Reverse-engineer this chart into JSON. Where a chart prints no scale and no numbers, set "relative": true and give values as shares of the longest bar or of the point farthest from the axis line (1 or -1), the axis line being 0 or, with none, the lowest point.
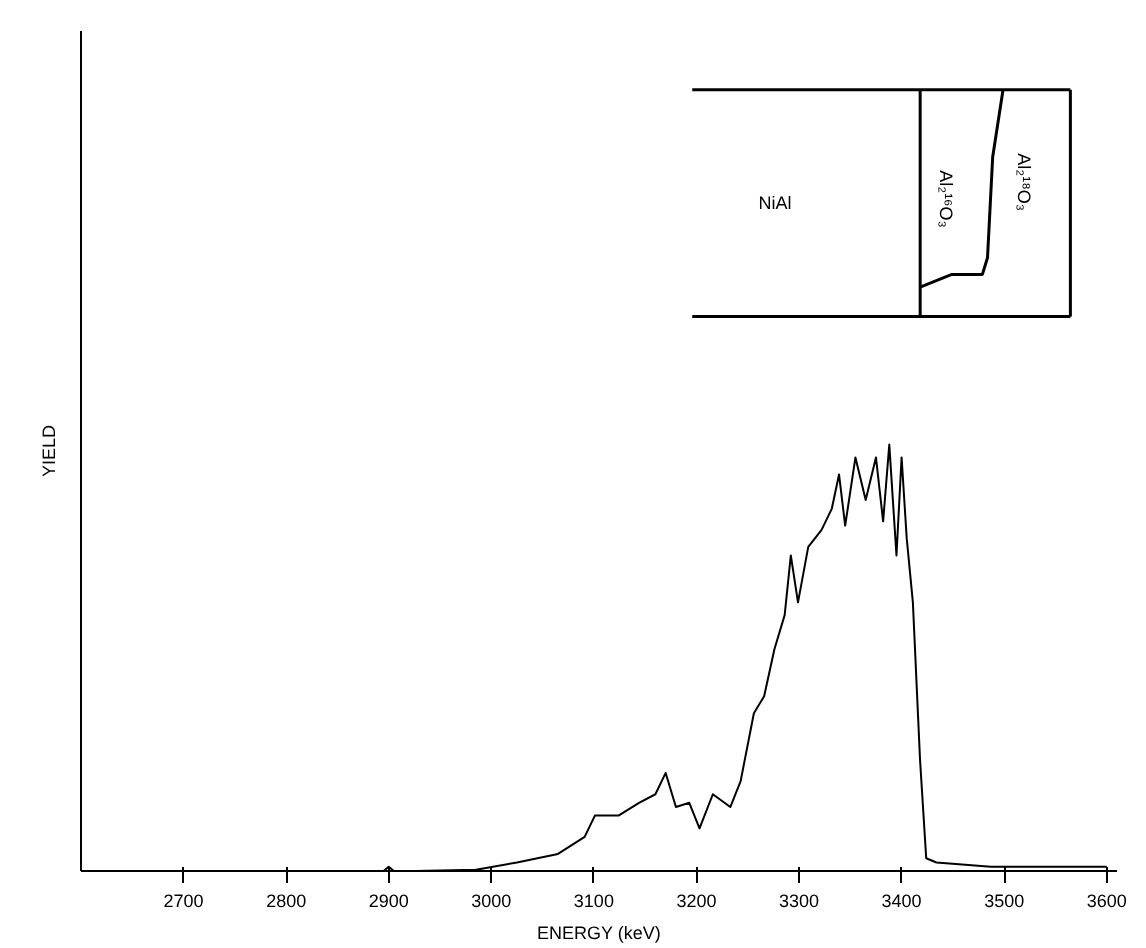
{
  "chart_data": {
    "type": "line",
    "relative": true,
    "xlabel": "ENERGY (keV)",
    "ylabel": "YIELD",
    "xlim": [
      2600,
      3610
    ],
    "xticks": [
      2700,
      2800,
      2900,
      3000,
      3100,
      3200,
      3300,
      3400,
      3500,
      3600
    ],
    "grid": false,
    "marker": "none",
    "line_style": "solid",
    "annotations": [
      "NiAl",
      "Al₂¹⁶O₃",
      "Al₂¹⁸O₃"
    ],
    "series": [
      {
        "color": "#000000",
        "x": [
          2600,
          2895,
          2900,
          2905,
          2926,
          2985,
          3025,
          3065,
          3091,
          3101,
          3124,
          3144,
          3160,
          3170,
          3180,
          3193,
          3203,
          3216,
          3233,
          3243,
          3256,
          3266,
          3276,
          3286,
          3292,
          3299,
          3309,
          3322,
          3332,
          3339,
          3345,
          3355,
          3365,
          3375,
          3382,
          3388,
          3395,
          3400,
          3405,
          3411,
          3418,
          3424,
          3434,
          3487,
          3600
        ],
        "values": [
          0,
          0,
          0.01,
          0,
          0,
          0.003,
          0.02,
          0.04,
          0.08,
          0.13,
          0.13,
          0.16,
          0.18,
          0.23,
          0.15,
          0.16,
          0.1,
          0.18,
          0.15,
          0.21,
          0.37,
          0.41,
          0.52,
          0.6,
          0.74,
          0.63,
          0.76,
          0.8,
          0.85,
          0.93,
          0.81,
          0.97,
          0.87,
          0.97,
          0.82,
          1.0,
          0.74,
          0.97,
          0.78,
          0.63,
          0.26,
          0.03,
          0.02,
          0.01,
          0.01
        ]
      }
    ]
  }
}
